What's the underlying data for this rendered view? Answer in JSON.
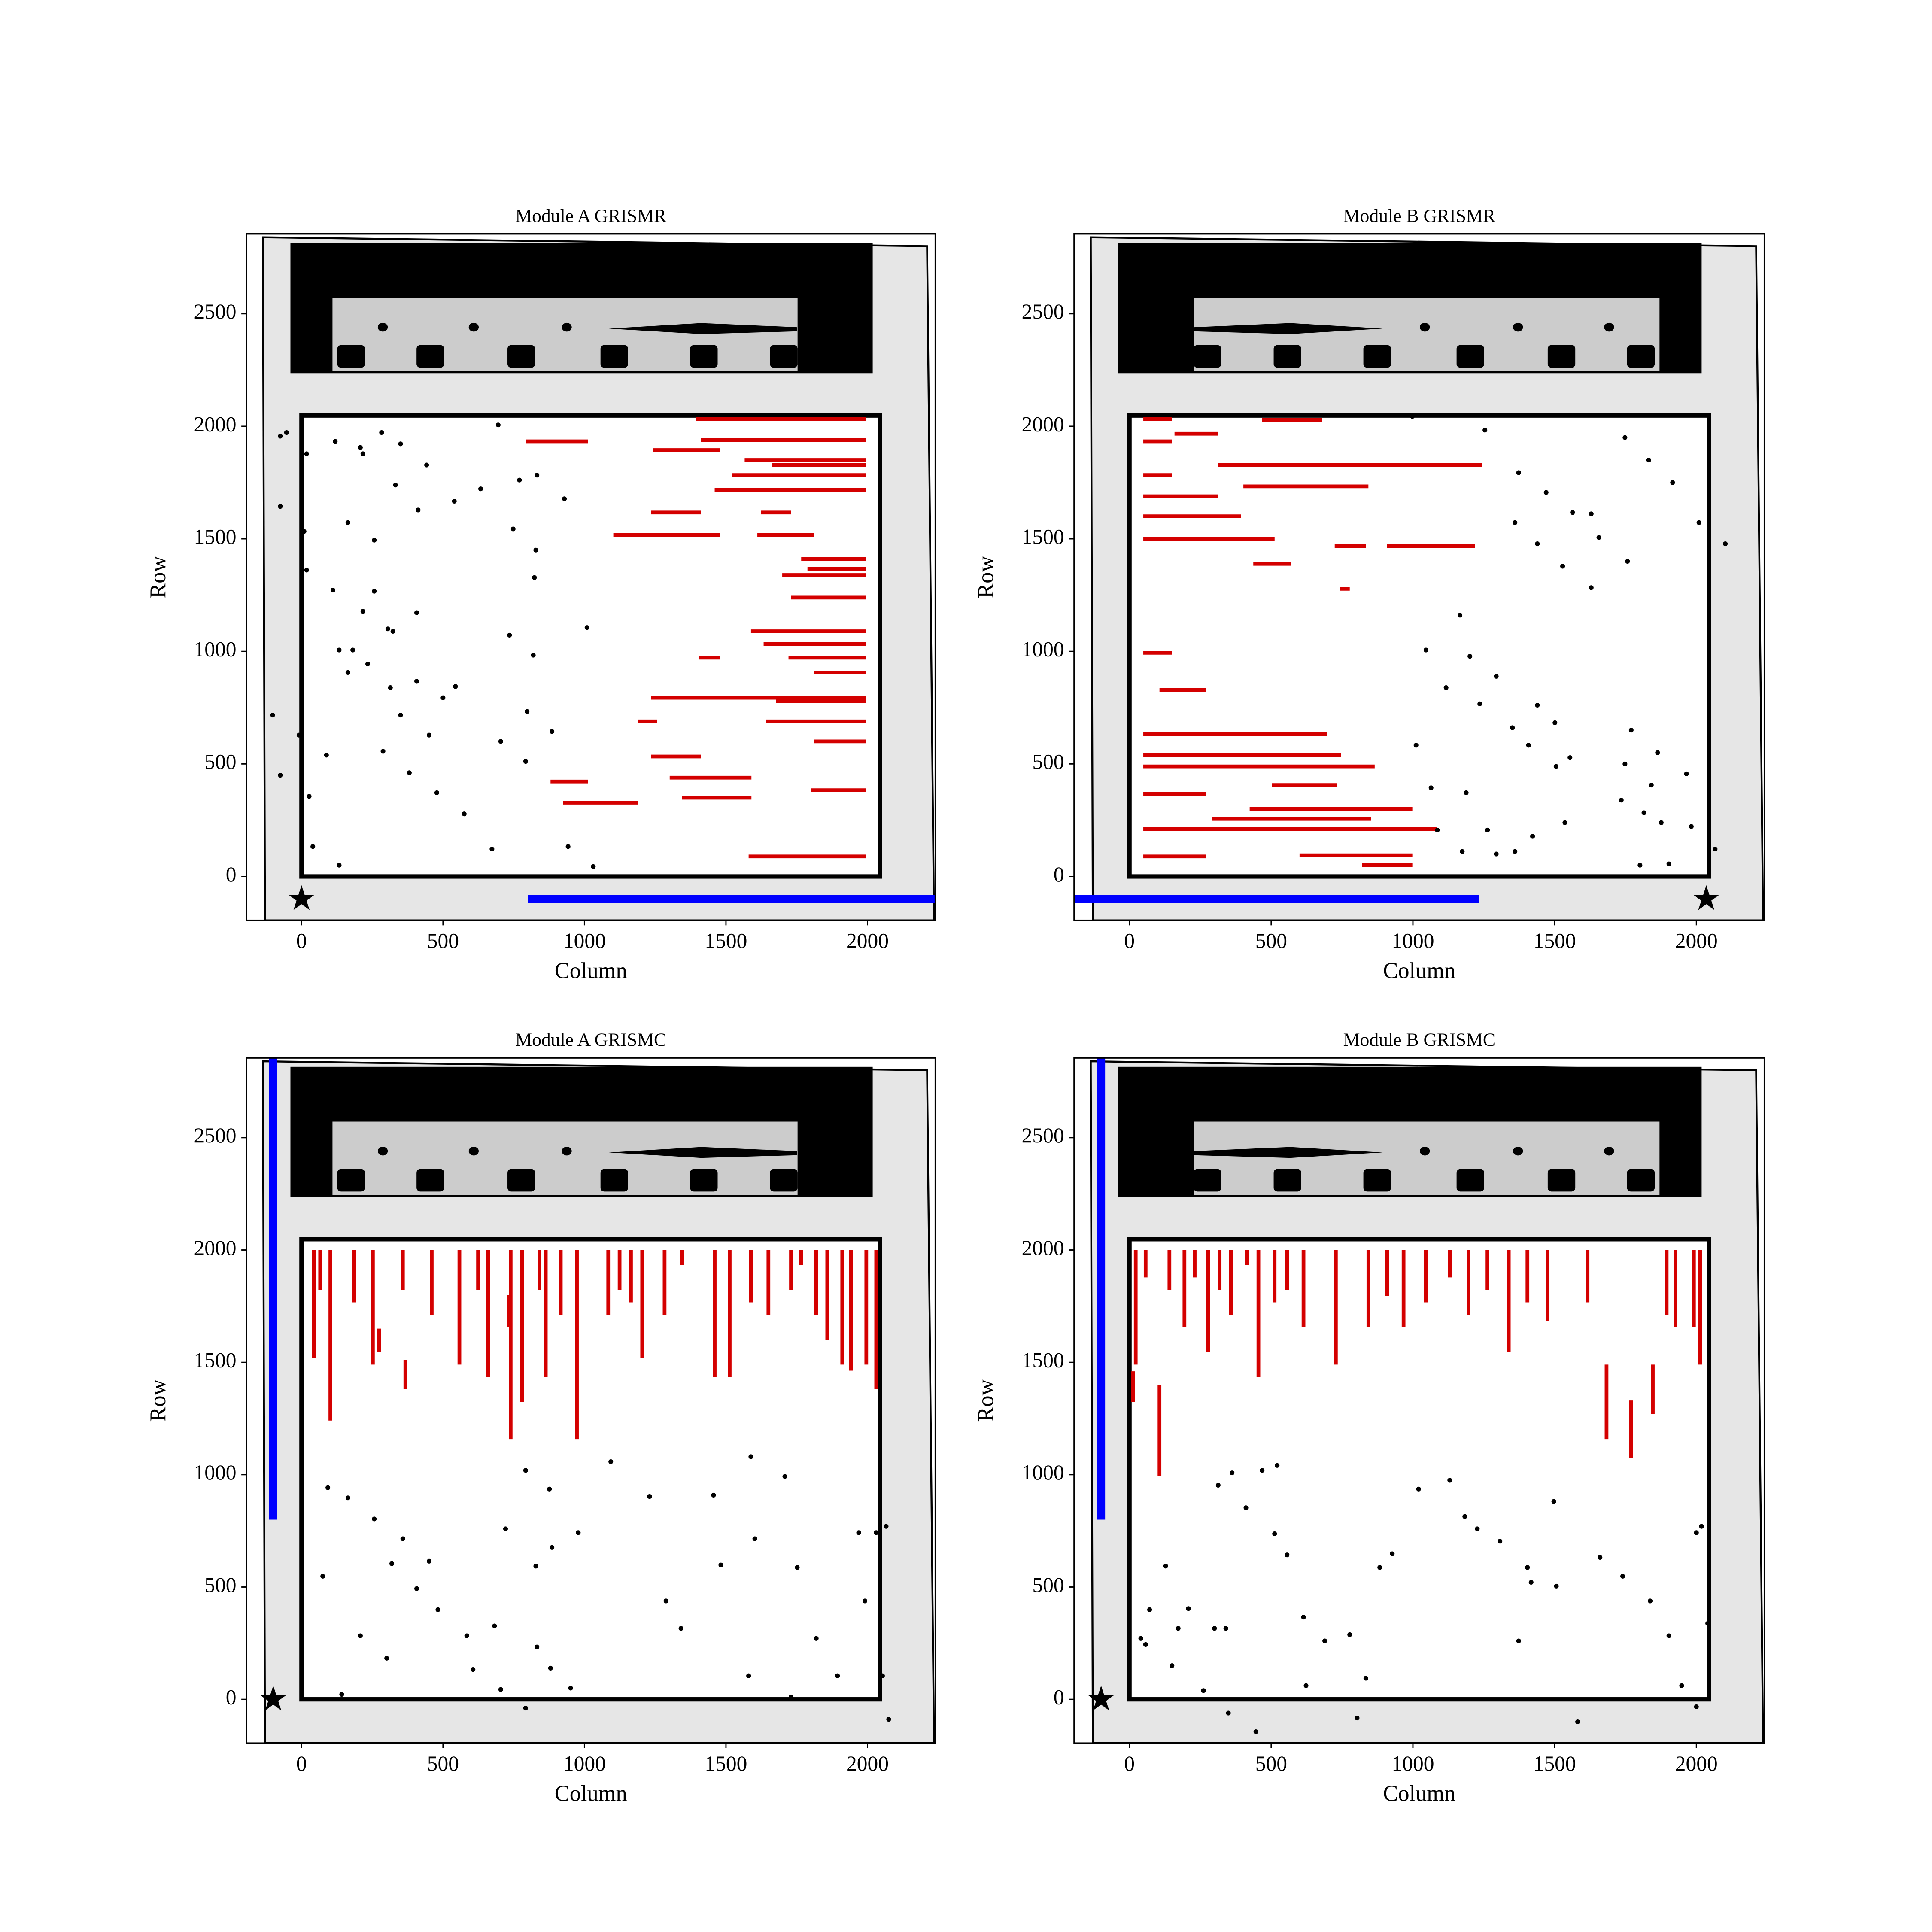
{
  "chart_data": [
    {
      "type": "scatter",
      "title": "Module A GRISMR",
      "xlabel": "Column",
      "ylabel": "Row",
      "xlim": [
        -195,
        2240
      ],
      "ylim": [
        -195,
        2855
      ],
      "xticks": [
        0,
        500,
        1000,
        1500,
        2000
      ],
      "yticks": [
        0,
        500,
        1000,
        1500,
        2000,
        2500
      ],
      "detector": {
        "x": [
          0,
          2044
        ],
        "y": [
          0,
          2048
        ]
      },
      "points": {
        "color": "#000000",
        "x": [
          -102,
          -75,
          -75,
          -75,
          -53,
          18,
          9,
          18,
          40,
          27,
          -9,
          88,
          133,
          119,
          111,
          208,
          217,
          257,
          257,
          164,
          283,
          350,
          332,
          412,
          442,
          540,
          633,
          695,
          770,
          748,
          832,
          828,
          823,
          929,
          407,
          181,
          164,
          217,
          305,
          323,
          133,
          234,
          314,
          350,
          407,
          451,
          500,
          544,
          288,
          381,
          478,
          575,
          673,
          704,
          735,
          819,
          797,
          885,
          792,
          942,
          1031,
          1009
        ],
        "y": [
          717,
          450,
          1644,
          1956,
          1972,
          1878,
          1533,
          1361,
          133,
          356,
          628,
          539,
          50,
          1933,
          1272,
          1906,
          1878,
          1267,
          1494,
          1572,
          1972,
          1922,
          1739,
          1628,
          1828,
          1667,
          1722,
          2006,
          1761,
          1544,
          1783,
          1450,
          1328,
          1678,
          1172,
          1006,
          906,
          1178,
          1100,
          1089,
          1006,
          944,
          839,
          717,
          867,
          628,
          794,
          844,
          556,
          461,
          372,
          278,
          122,
          600,
          1072,
          983,
          733,
          644,
          511,
          133,
          44,
          1106
        ]
      },
      "traces": {
        "color": "#d40000",
        "x": [
          1394,
          1243,
          1412,
          1566,
          1664,
          1522,
          1460,
          1235,
          1102,
          1624,
          1611,
          1766,
          1699,
          1788,
          1730,
          1588,
          1633,
          1403,
          1721,
          1810,
          1235,
          1677,
          1642,
          1810,
          1235,
          1301,
          1345,
          925,
          1580,
          1801,
          792,
          1190,
          880
        ],
        "x_end": [
          1996,
          1478,
          1996,
          1996,
          1996,
          1996,
          1996,
          1412,
          1478,
          1730,
          1810,
          1996,
          1996,
          1996,
          1996,
          1996,
          1996,
          1478,
          1996,
          1996,
          1996,
          1996,
          1996,
          1996,
          1412,
          1590,
          1590,
          1190,
          1996,
          1996,
          1013,
          1257,
          1013
        ],
        "y": [
          2033,
          1894,
          1939,
          1850,
          1828,
          1783,
          1717,
          1617,
          1517,
          1617,
          1517,
          1411,
          1339,
          1367,
          1239,
          1089,
          1033,
          972,
          972,
          906,
          794,
          778,
          689,
          600,
          533,
          439,
          350,
          328,
          89,
          383,
          1933,
          689,
          422
        ]
      },
      "dispersion": {
        "color": "#0000ff",
        "x": [
          800,
          2240
        ],
        "y": [
          -100,
          -100
        ]
      },
      "reference": {
        "x": 0,
        "y": -100
      }
    },
    {
      "type": "scatter",
      "title": "Module B GRISMR",
      "xlabel": "Column",
      "ylabel": "Row",
      "xlim": [
        -195,
        2240
      ],
      "ylim": [
        -195,
        2855
      ],
      "xticks": [
        0,
        500,
        1000,
        1500,
        2000
      ],
      "yticks": [
        0,
        500,
        1000,
        1500,
        2000,
        2500
      ],
      "detector": {
        "x": [
          0,
          2044
        ],
        "y": [
          0,
          2048
        ]
      },
      "points": {
        "color": "#000000",
        "x": [
          998,
          1254,
          1748,
          1916,
          1373,
          1470,
          1563,
          1629,
          1360,
          1439,
          1528,
          1629,
          1656,
          1757,
          2009,
          2102,
          1832,
          1166,
          1046,
          1201,
          1117,
          1294,
          1236,
          1351,
          1439,
          1501,
          1408,
          1505,
          1554,
          1748,
          1770,
          1863,
          1841,
          1965,
          1815,
          1876,
          1982,
          2066,
          1903,
          1801,
          1536,
          1422,
          1360,
          1294,
          1263,
          1174,
          1064,
          1188,
          1011,
          1086,
          1735
        ],
        "y": [
          2044,
          1983,
          1950,
          1750,
          1794,
          1706,
          1617,
          1611,
          1572,
          1478,
          1378,
          1283,
          1506,
          1400,
          1572,
          1478,
          1850,
          1161,
          1006,
          978,
          839,
          889,
          767,
          661,
          761,
          683,
          583,
          489,
          528,
          500,
          650,
          550,
          406,
          456,
          283,
          239,
          222,
          122,
          56,
          50,
          239,
          178,
          111,
          100,
          206,
          111,
          394,
          372,
          583,
          206,
          339
        ]
      },
      "traces": {
        "color": "#d40000",
        "x": [
          49,
          49,
          159,
          468,
          313,
          402,
          49,
          49,
          49,
          49,
          909,
          724,
          437,
          742,
          49,
          106,
          49,
          49,
          49,
          49,
          424,
          291,
          49,
          600,
          821,
          49,
          503
        ],
        "x_end": [
          150,
          150,
          313,
          680,
          1245,
          843,
          150,
          313,
          393,
          512,
          1219,
          834,
          570,
          777,
          150,
          269,
          698,
          746,
          865,
          269,
          998,
          852,
          1086,
          998,
          998,
          269,
          733
        ],
        "y": [
          2033,
          1933,
          1967,
          2028,
          1828,
          1733,
          1783,
          1689,
          1600,
          1500,
          1467,
          1467,
          1389,
          1278,
          994,
          828,
          633,
          539,
          489,
          367,
          300,
          256,
          211,
          94,
          50,
          89,
          406
        ]
      },
      "dispersion": {
        "color": "#0000ff",
        "x": [
          -195,
          1232
        ],
        "y": [
          -100,
          -100
        ]
      },
      "reference": {
        "x": 2035,
        "y": -100
      }
    },
    {
      "type": "scatter",
      "title": "Module A GRISMC",
      "xlabel": "Column",
      "ylabel": "Row",
      "xlim": [
        -195,
        2240
      ],
      "ylim": [
        -195,
        2855
      ],
      "xticks": [
        0,
        500,
        1000,
        1500,
        2000
      ],
      "yticks": [
        0,
        500,
        1000,
        1500,
        2000,
        2500
      ],
      "detector": {
        "x": [
          0,
          2044
        ],
        "y": [
          0,
          2048
        ]
      },
      "points": {
        "color": "#000000",
        "x": [
          93,
          164,
          257,
          75,
          358,
          319,
          451,
          407,
          482,
          584,
          606,
          704,
          208,
          301,
          142,
          682,
          832,
          880,
          951,
          721,
          792,
          876,
          828,
          885,
          978,
          1093,
          1230,
          1288,
          1341,
          1456,
          1482,
          1588,
          1602,
          1708,
          1752,
          1819,
          1894,
          1969,
          1991,
          2031,
          2066,
          2053,
          2075,
          1730,
          792,
          1580
        ],
        "y": [
          942,
          897,
          803,
          548,
          715,
          604,
          615,
          493,
          399,
          283,
          133,
          44,
          283,
          183,
          22,
          327,
          233,
          139,
          50,
          759,
          1019,
          936,
          593,
          676,
          742,
          1058,
          903,
          438,
          316,
          909,
          598,
          1080,
          715,
          992,
          587,
          271,
          105,
          742,
          438,
          742,
          770,
          105,
          -89,
          11,
          -39,
          105
        ]
      },
      "traces": {
        "color": "#d40000",
        "x": [
          44,
          66,
          102,
          186,
          252,
          274,
          358,
          367,
          460,
          558,
          624,
          660,
          739,
          779,
          841,
          863,
          916,
          973,
          1084,
          1124,
          1204,
          1283,
          1345,
          1460,
          1513,
          1588,
          1650,
          1730,
          1766,
          1819,
          1858,
          1911,
          1942,
          1996,
          2031,
          1164,
          734
        ],
        "y": [
          1518,
          1823,
          1241,
          1767,
          1490,
          1546,
          1823,
          1380,
          1712,
          1490,
          1823,
          1435,
          1158,
          1324,
          1823,
          1435,
          1712,
          1158,
          1712,
          1823,
          1518,
          1712,
          1933,
          1435,
          1435,
          1767,
          1712,
          1823,
          1933,
          1712,
          1601,
          1490,
          1463,
          1490,
          1380,
          1767,
          1657
        ],
        "y_end": [
          2000,
          2000,
          2000,
          2000,
          2000,
          1650,
          2000,
          1510,
          2000,
          2000,
          2000,
          2000,
          2000,
          2000,
          2000,
          2000,
          2000,
          2000,
          2000,
          2000,
          2000,
          2000,
          2000,
          2000,
          2000,
          2000,
          2000,
          2000,
          2000,
          2000,
          2000,
          2000,
          2000,
          2000,
          2000,
          2000,
          1800
        ]
      },
      "dispersion": {
        "color": "#0000ff",
        "x": [
          -100,
          -100
        ],
        "y": [
          800,
          2855
        ]
      },
      "reference": {
        "x": -100,
        "y": 0
      }
    },
    {
      "type": "scatter",
      "title": "Module B GRISMC",
      "xlabel": "Column",
      "ylabel": "Row",
      "xlim": [
        -195,
        2240
      ],
      "ylim": [
        -195,
        2855
      ],
      "xticks": [
        0,
        500,
        1000,
        1500,
        2000
      ],
      "yticks": [
        0,
        500,
        1000,
        1500,
        2000,
        2500
      ],
      "detector": {
        "x": [
          0,
          2044
        ],
        "y": [
          0,
          2048
        ]
      },
      "points": {
        "color": "#000000",
        "x": [
          40,
          57,
          71,
          128,
          172,
          150,
          208,
          261,
          300,
          340,
          349,
          313,
          362,
          468,
          521,
          411,
          512,
          556,
          614,
          623,
          446,
          689,
          777,
          834,
          927,
          883,
          803,
          1020,
          1130,
          1183,
          1227,
          1307,
          1373,
          1497,
          1404,
          1417,
          1506,
          1581,
          1660,
          1740,
          1837,
          1903,
          1948,
          2000,
          2018,
          2040,
          2000
        ],
        "y": [
          271,
          244,
          399,
          593,
          316,
          150,
          404,
          39,
          316,
          316,
          -61,
          953,
          1008,
          1019,
          1041,
          853,
          737,
          643,
          366,
          61,
          -144,
          260,
          288,
          94,
          648,
          587,
          -83,
          936,
          975,
          814,
          759,
          704,
          260,
          881,
          587,
          521,
          504,
          -100,
          632,
          548,
          438,
          283,
          61,
          742,
          770,
          338,
          -33
        ]
      },
      "traces": {
        "color": "#d40000",
        "x": [
          13,
          22,
          57,
          106,
          141,
          194,
          230,
          278,
          318,
          358,
          415,
          455,
          512,
          556,
          614,
          728,
          843,
          909,
          967,
          1046,
          1130,
          1196,
          1263,
          1338,
          1404,
          1475,
          1616,
          1683,
          1770,
          1846,
          1895,
          1926,
          1991,
          2013
        ],
        "y": [
          1324,
          1490,
          1878,
          992,
          1823,
          1657,
          1878,
          1546,
          1823,
          1712,
          1933,
          1435,
          1767,
          1823,
          1657,
          1490,
          1657,
          1795,
          1657,
          1767,
          1878,
          1712,
          1823,
          1546,
          1767,
          1684,
          1767,
          1158,
          1075,
          1269,
          1712,
          1657,
          1657,
          1490
        ],
        "y_end": [
          1460,
          2000,
          2000,
          1400,
          2000,
          2000,
          2000,
          2000,
          2000,
          2000,
          2000,
          2000,
          2000,
          2000,
          2000,
          2000,
          2000,
          2000,
          2000,
          2000,
          2000,
          2000,
          2000,
          2000,
          2000,
          2000,
          2000,
          1490,
          1330,
          1490,
          2000,
          2000,
          2000,
          2000
        ]
      },
      "dispersion": {
        "color": "#0000ff",
        "x": [
          -100,
          -100
        ],
        "y": [
          800,
          2855
        ]
      },
      "reference": {
        "x": -100,
        "y": 0
      }
    }
  ]
}
